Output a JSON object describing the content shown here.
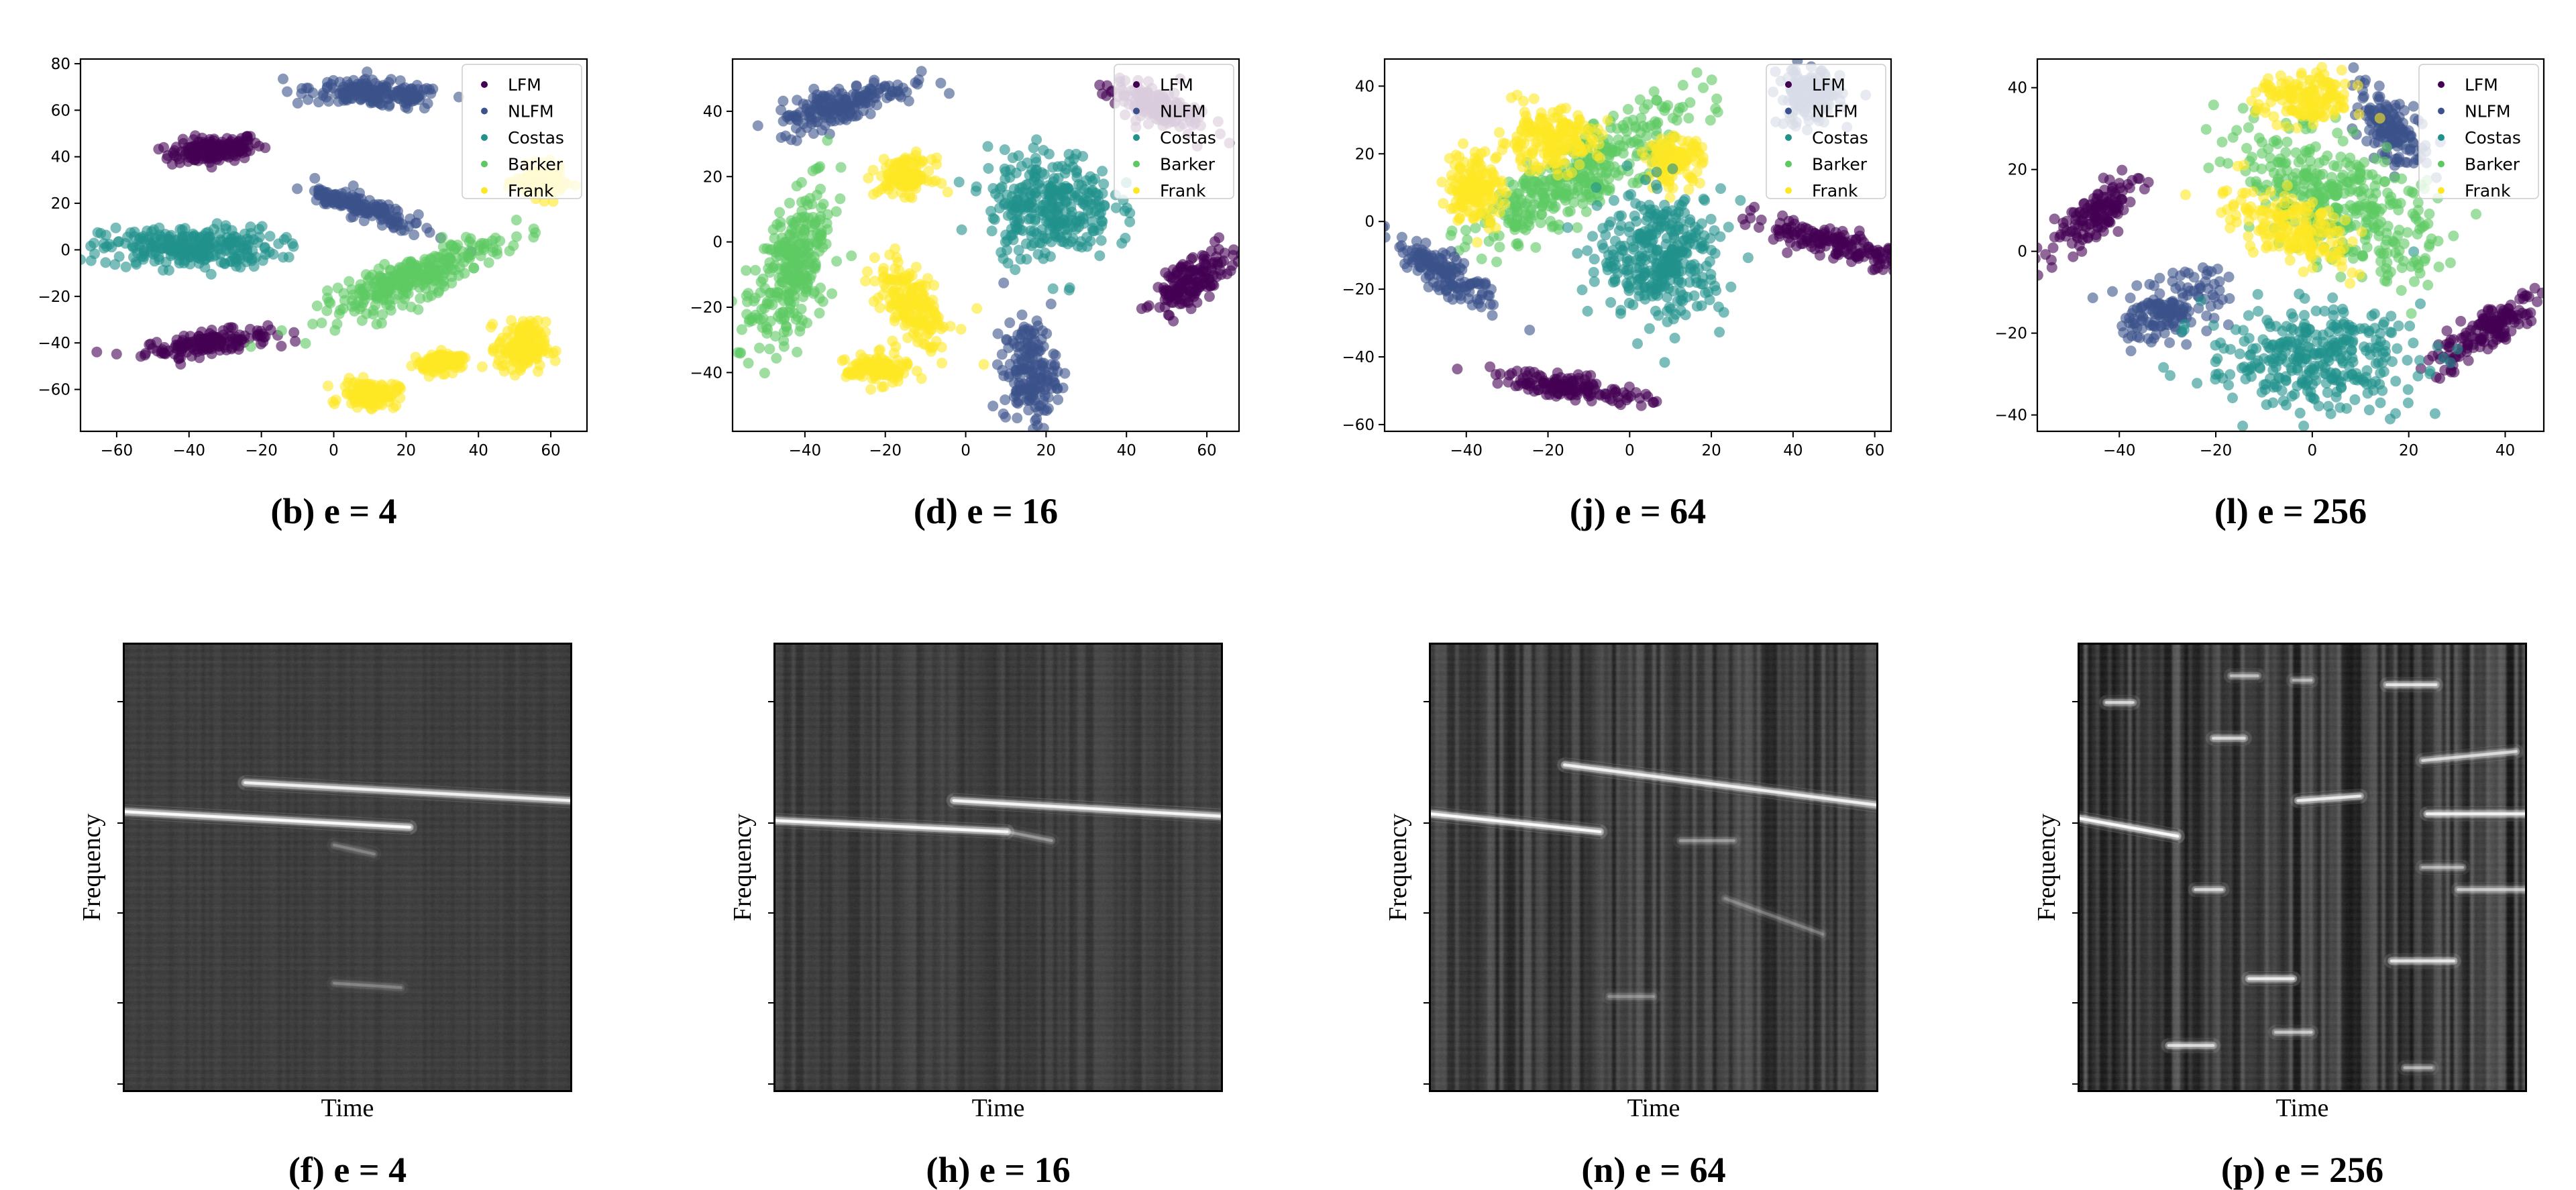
{
  "colors": {
    "LFM": "#440154",
    "NLFM": "#3b528b",
    "Costas": "#21918c",
    "Barker": "#5ec962",
    "Frank": "#fde725"
  },
  "legend_labels": [
    "LFM",
    "NLFM",
    "Costas",
    "Barker",
    "Frank"
  ],
  "chart_data": [
    {
      "type": "scatter",
      "caption": "(b) e = 4",
      "xlim": [
        -70,
        70
      ],
      "ylim": [
        -78,
        82
      ],
      "xticks": [
        -60,
        -40,
        -20,
        0,
        20,
        40,
        60
      ],
      "yticks": [
        -60,
        -40,
        -20,
        0,
        20,
        40,
        60,
        80
      ],
      "legend_position": "top-right",
      "clusters": [
        {
          "class": "LFM",
          "shape": "blob",
          "center": [
            -33,
            43
          ],
          "spread": [
            12,
            5
          ],
          "angle": 10
        },
        {
          "class": "LFM",
          "shape": "blob",
          "center": [
            -35,
            -40
          ],
          "spread": [
            16,
            4
          ],
          "angle": 12
        },
        {
          "class": "NLFM",
          "shape": "blob",
          "center": [
            12,
            67
          ],
          "spread": [
            17,
            5
          ],
          "angle": -8
        },
        {
          "class": "NLFM",
          "shape": "blob",
          "center": [
            8,
            18
          ],
          "spread": [
            4,
            16
          ],
          "angle": 60
        },
        {
          "class": "Costas",
          "shape": "blob",
          "center": [
            -40,
            1
          ],
          "spread": [
            22,
            8
          ],
          "angle": 0
        },
        {
          "class": "Barker",
          "shape": "blob",
          "center": [
            22,
            -12
          ],
          "spread": [
            26,
            7
          ],
          "angle": 34
        },
        {
          "class": "Frank",
          "shape": "blob",
          "center": [
            57,
            29
          ],
          "spread": [
            6,
            6
          ],
          "angle": 0
        },
        {
          "class": "Frank",
          "shape": "blob",
          "center": [
            10,
            -62
          ],
          "spread": [
            7,
            5
          ],
          "angle": 0
        },
        {
          "class": "Frank",
          "shape": "blob",
          "center": [
            52,
            -42
          ],
          "spread": [
            6,
            10
          ],
          "angle": 0
        },
        {
          "class": "Frank",
          "shape": "blob",
          "center": [
            30,
            -48
          ],
          "spread": [
            6,
            4
          ],
          "angle": 20
        }
      ]
    },
    {
      "type": "scatter",
      "caption": "(d) e = 16",
      "xlim": [
        -58,
        68
      ],
      "ylim": [
        -58,
        56
      ],
      "xticks": [
        -40,
        -20,
        0,
        20,
        40,
        60
      ],
      "yticks": [
        -40,
        -20,
        0,
        20,
        40
      ],
      "legend_position": "top-right",
      "clusters": [
        {
          "class": "NLFM",
          "shape": "blob",
          "center": [
            -31,
            42
          ],
          "spread": [
            17,
            5
          ],
          "angle": 20
        },
        {
          "class": "NLFM",
          "shape": "blob",
          "center": [
            16,
            -40
          ],
          "spread": [
            6,
            14
          ],
          "angle": 0
        },
        {
          "class": "LFM",
          "shape": "blob",
          "center": [
            47,
            42
          ],
          "spread": [
            12,
            5
          ],
          "angle": -25
        },
        {
          "class": "LFM",
          "shape": "blob",
          "center": [
            56,
            -12
          ],
          "spread": [
            5,
            12
          ],
          "angle": -50
        },
        {
          "class": "Costas",
          "shape": "blob",
          "center": [
            21,
            11
          ],
          "spread": [
            14,
            15
          ],
          "angle": 0
        },
        {
          "class": "Barker",
          "shape": "blob",
          "center": [
            -43,
            -8
          ],
          "spread": [
            8,
            22
          ],
          "angle": -15
        },
        {
          "class": "Frank",
          "shape": "blob",
          "center": [
            -15,
            20
          ],
          "spread": [
            6,
            5
          ],
          "angle": 0
        },
        {
          "class": "Frank",
          "shape": "blob",
          "center": [
            -13,
            -20
          ],
          "spread": [
            6,
            14
          ],
          "angle": 25
        },
        {
          "class": "Frank",
          "shape": "blob",
          "center": [
            -22,
            -39
          ],
          "spread": [
            7,
            4
          ],
          "angle": 0
        }
      ]
    },
    {
      "type": "scatter",
      "caption": "(j) e = 64",
      "xlim": [
        -60,
        64
      ],
      "ylim": [
        -62,
        48
      ],
      "xticks": [
        -40,
        -20,
        0,
        20,
        40,
        60
      ],
      "yticks": [
        -60,
        -40,
        -20,
        0,
        20,
        40
      ],
      "legend_position": "top-right",
      "clusters": [
        {
          "class": "Barker",
          "shape": "blob",
          "center": [
            -12,
            14
          ],
          "spread": [
            30,
            8
          ],
          "angle": 38
        },
        {
          "class": "Frank",
          "shape": "blob",
          "center": [
            -38,
            10
          ],
          "spread": [
            6,
            10
          ],
          "angle": 0
        },
        {
          "class": "Frank",
          "shape": "blob",
          "center": [
            -20,
            24
          ],
          "spread": [
            11,
            8
          ],
          "angle": 0
        },
        {
          "class": "Frank",
          "shape": "blob",
          "center": [
            11,
            18
          ],
          "spread": [
            6,
            6
          ],
          "angle": 0
        },
        {
          "class": "Costas",
          "shape": "blob",
          "center": [
            8,
            -10
          ],
          "spread": [
            14,
            17
          ],
          "angle": 0
        },
        {
          "class": "NLFM",
          "shape": "blob",
          "center": [
            -46,
            -15
          ],
          "spread": [
            14,
            4
          ],
          "angle": -40
        },
        {
          "class": "NLFM",
          "shape": "blob",
          "center": [
            44,
            37
          ],
          "spread": [
            7,
            8
          ],
          "angle": 0
        },
        {
          "class": "LFM",
          "shape": "blob",
          "center": [
            -14,
            -49
          ],
          "spread": [
            17,
            3
          ],
          "angle": -10
        },
        {
          "class": "LFM",
          "shape": "blob",
          "center": [
            52,
            -7
          ],
          "spread": [
            4,
            18
          ],
          "angle": 70
        }
      ]
    },
    {
      "type": "scatter",
      "caption": "(l) e = 256",
      "xlim": [
        -57,
        48
      ],
      "ylim": [
        -44,
        47
      ],
      "xticks": [
        -40,
        -20,
        0,
        20,
        40
      ],
      "yticks": [
        -40,
        -20,
        0,
        20,
        40
      ],
      "legend_position": "top-right",
      "clusters": [
        {
          "class": "LFM",
          "shape": "blob",
          "center": [
            -45,
            9
          ],
          "spread": [
            11,
            4
          ],
          "angle": 45
        },
        {
          "class": "LFM",
          "shape": "blob",
          "center": [
            35,
            -20
          ],
          "spread": [
            14,
            4
          ],
          "angle": 40
        },
        {
          "class": "NLFM",
          "shape": "blob",
          "center": [
            -29,
            -14
          ],
          "spread": [
            10,
            6
          ],
          "angle": 30
        },
        {
          "class": "NLFM",
          "shape": "blob",
          "center": [
            16,
            30
          ],
          "spread": [
            10,
            5
          ],
          "angle": -60
        },
        {
          "class": "Costas",
          "shape": "blob",
          "center": [
            0,
            -26
          ],
          "spread": [
            20,
            11
          ],
          "angle": 0
        },
        {
          "class": "Barker",
          "shape": "blob",
          "center": [
            6,
            12
          ],
          "spread": [
            22,
            12
          ],
          "angle": -40
        },
        {
          "class": "Frank",
          "shape": "blob",
          "center": [
            -1,
            37
          ],
          "spread": [
            9,
            6
          ],
          "angle": 0
        },
        {
          "class": "Frank",
          "shape": "blob",
          "center": [
            -5,
            6
          ],
          "spread": [
            12,
            7
          ],
          "angle": -35
        }
      ]
    },
    {
      "type": "heatmap",
      "caption": "(f) e = 4",
      "xlabel": "Time",
      "ylabel": "Frequency",
      "lines": [
        {
          "t0": 0.0,
          "t1": 0.64,
          "f0": 0.375,
          "f1": 0.41,
          "w": 1.0
        },
        {
          "t0": 0.27,
          "t1": 1.0,
          "f0": 0.31,
          "f1": 0.35,
          "w": 0.9
        },
        {
          "t0": 0.47,
          "t1": 0.56,
          "f0": 0.45,
          "f1": 0.47,
          "w": 0.25
        },
        {
          "t0": 0.47,
          "t1": 0.62,
          "f0": 0.76,
          "f1": 0.77,
          "w": 0.25
        }
      ],
      "vstripes": 0.15
    },
    {
      "type": "heatmap",
      "caption": "(h) e = 16",
      "xlabel": "Time",
      "ylabel": "Frequency",
      "lines": [
        {
          "t0": 0.0,
          "t1": 0.52,
          "f0": 0.395,
          "f1": 0.42,
          "w": 1.0
        },
        {
          "t0": 0.4,
          "t1": 1.0,
          "f0": 0.35,
          "f1": 0.385,
          "w": 0.95
        },
        {
          "t0": 0.52,
          "t1": 0.62,
          "f0": 0.42,
          "f1": 0.44,
          "w": 0.35
        }
      ],
      "vstripes": 0.35
    },
    {
      "type": "heatmap",
      "caption": "(n) e = 64",
      "xlabel": "Time",
      "ylabel": "Frequency",
      "lines": [
        {
          "t0": 0.0,
          "t1": 0.38,
          "f0": 0.38,
          "f1": 0.42,
          "w": 1.0
        },
        {
          "t0": 0.3,
          "t1": 1.0,
          "f0": 0.27,
          "f1": 0.36,
          "w": 0.9
        },
        {
          "t0": 0.56,
          "t1": 0.68,
          "f0": 0.44,
          "f1": 0.44,
          "w": 0.35
        },
        {
          "t0": 0.66,
          "t1": 0.88,
          "f0": 0.57,
          "f1": 0.65,
          "w": 0.25
        },
        {
          "t0": 0.4,
          "t1": 0.5,
          "f0": 0.79,
          "f1": 0.79,
          "w": 0.3
        }
      ],
      "vstripes": 0.75
    },
    {
      "type": "heatmap",
      "caption": "(p) e = 256",
      "xlabel": "Time",
      "ylabel": "Frequency",
      "lines": [
        {
          "t0": 0.0,
          "t1": 0.22,
          "f0": 0.39,
          "f1": 0.43,
          "w": 1.0
        },
        {
          "t0": 0.06,
          "t1": 0.12,
          "f0": 0.13,
          "f1": 0.13,
          "w": 0.7
        },
        {
          "t0": 0.3,
          "t1": 0.37,
          "f0": 0.21,
          "f1": 0.21,
          "w": 0.7
        },
        {
          "t0": 0.34,
          "t1": 0.4,
          "f0": 0.07,
          "f1": 0.07,
          "w": 0.55
        },
        {
          "t0": 0.48,
          "t1": 0.52,
          "f0": 0.08,
          "f1": 0.08,
          "w": 0.5
        },
        {
          "t0": 0.49,
          "t1": 0.63,
          "f0": 0.35,
          "f1": 0.34,
          "w": 0.85
        },
        {
          "t0": 0.69,
          "t1": 0.8,
          "f0": 0.09,
          "f1": 0.09,
          "w": 0.8
        },
        {
          "t0": 0.77,
          "t1": 0.98,
          "f0": 0.26,
          "f1": 0.24,
          "w": 0.7
        },
        {
          "t0": 0.78,
          "t1": 1.0,
          "f0": 0.38,
          "f1": 0.38,
          "w": 0.9
        },
        {
          "t0": 0.77,
          "t1": 0.86,
          "f0": 0.5,
          "f1": 0.5,
          "w": 0.5
        },
        {
          "t0": 0.85,
          "t1": 1.0,
          "f0": 0.55,
          "f1": 0.55,
          "w": 0.6
        },
        {
          "t0": 0.26,
          "t1": 0.32,
          "f0": 0.55,
          "f1": 0.55,
          "w": 0.7
        },
        {
          "t0": 0.7,
          "t1": 0.84,
          "f0": 0.71,
          "f1": 0.71,
          "w": 0.8
        },
        {
          "t0": 0.38,
          "t1": 0.48,
          "f0": 0.75,
          "f1": 0.75,
          "w": 0.85
        },
        {
          "t0": 0.2,
          "t1": 0.3,
          "f0": 0.9,
          "f1": 0.9,
          "w": 0.75
        },
        {
          "t0": 0.44,
          "t1": 0.52,
          "f0": 0.87,
          "f1": 0.87,
          "w": 0.6
        },
        {
          "t0": 0.73,
          "t1": 0.79,
          "f0": 0.95,
          "f1": 0.95,
          "w": 0.5
        }
      ],
      "vstripes": 1.0
    }
  ]
}
